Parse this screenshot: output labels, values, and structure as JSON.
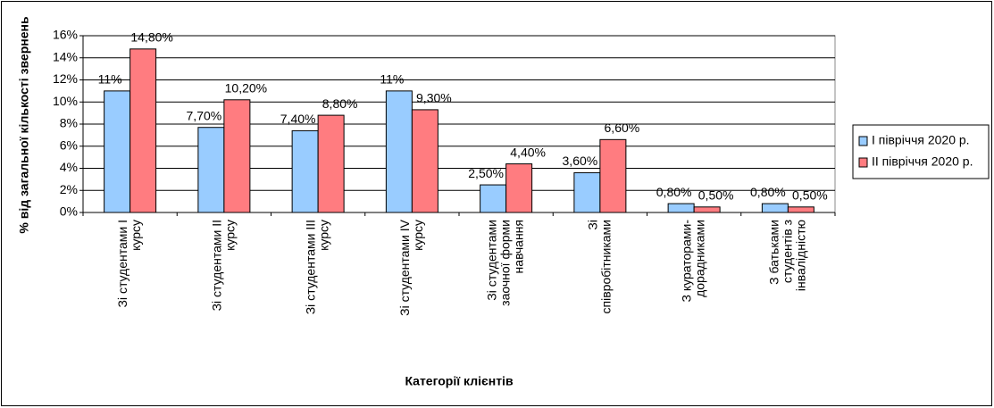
{
  "chart_data": {
    "type": "bar",
    "x_label": "Категорії клієнтів",
    "y_label": "% від загальної кількості звернень",
    "categories": [
      "Зі студентами І курсу",
      "Зі студентами ІІ курсу",
      "Зі студентами ІІІ курсу",
      "Зі студентами IV курсу",
      "Зі студентами заочної форми навчання",
      "Зі співробітниками",
      "З кураторами-дорадниками",
      "З батьками студентів з інвалідністю"
    ],
    "series": [
      {
        "name": "І півріччя 2020 р.",
        "color": "#99ccff",
        "values": [
          11,
          7.7,
          7.4,
          11,
          2.5,
          3.6,
          0.8,
          0.8
        ],
        "value_labels": [
          "11%",
          "7,70%",
          "7,40%",
          "11%",
          "2,50%",
          "3,60%",
          "0,80%",
          "0,80%"
        ]
      },
      {
        "name": "ІІ півріччя 2020 р.",
        "color": "#ff7c80",
        "values": [
          14.8,
          10.2,
          8.8,
          9.3,
          4.4,
          6.6,
          0.5,
          0.5
        ],
        "value_labels": [
          "14,80%",
          "10,20%",
          "8,80%",
          "9,30%",
          "4,40%",
          "6,60%",
          "0,50%",
          "0,50%"
        ]
      }
    ],
    "ylim": [
      0,
      16
    ],
    "yticks": [
      {
        "value": 0,
        "label": "0%"
      },
      {
        "value": 2,
        "label": "2%"
      },
      {
        "value": 4,
        "label": "4%"
      },
      {
        "value": 6,
        "label": "6%"
      },
      {
        "value": 8,
        "label": "8%"
      },
      {
        "value": 10,
        "label": "10%"
      },
      {
        "value": 12,
        "label": "12%"
      },
      {
        "value": 14,
        "label": "14%"
      },
      {
        "value": 16,
        "label": "16%"
      }
    ],
    "grid": true,
    "legend": "right"
  }
}
